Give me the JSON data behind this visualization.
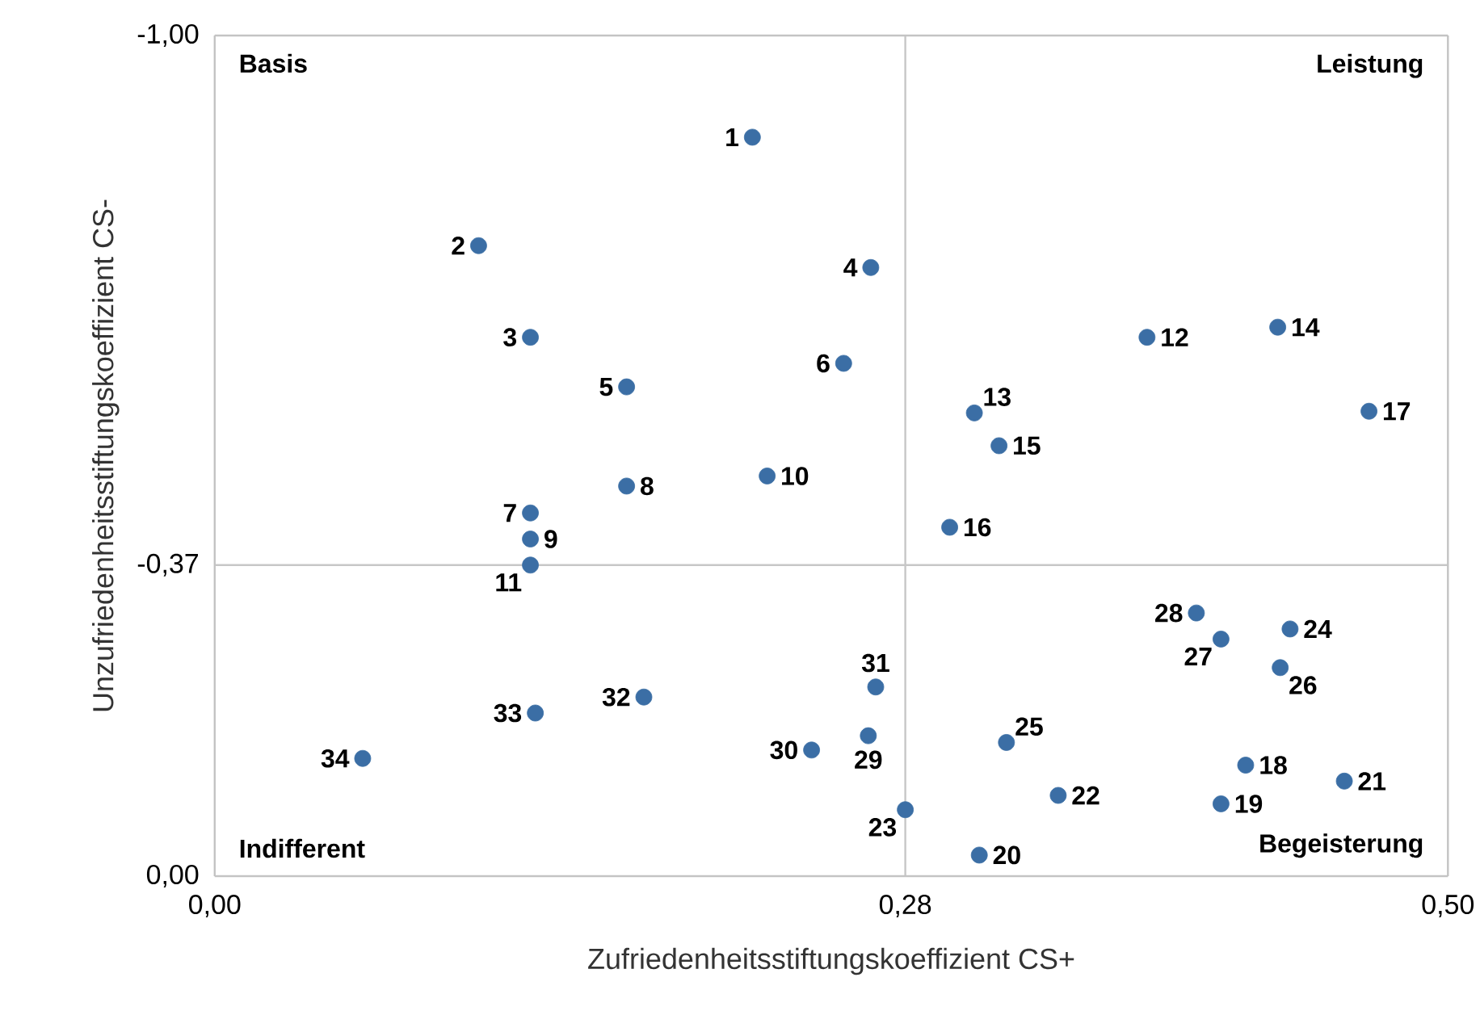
{
  "chart_data": {
    "type": "scatter",
    "xlabel": "Zufriedenheitsstiftungskoeffizient CS+",
    "ylabel": "Unzufriedenheitsstiftungskoeffizient CS-",
    "xlim": [
      0,
      0.5
    ],
    "ylim": [
      0,
      -1
    ],
    "xticks": [
      {
        "value": 0,
        "label": "0,00"
      },
      {
        "value": 0.28,
        "label": "0,28"
      },
      {
        "value": 0.5,
        "label": "0,50"
      }
    ],
    "yticks": [
      {
        "value": -1,
        "label": "-1,00"
      },
      {
        "value": -0.37,
        "label": "-0,37"
      },
      {
        "value": 0,
        "label": "0,00"
      }
    ],
    "grid": true,
    "marker": "circle",
    "series": [
      {
        "color": "#3b6ea5",
        "x": [
          0.218,
          0.107,
          0.128,
          0.266,
          0.167,
          0.255,
          0.128,
          0.167,
          0.128,
          0.224,
          0.128,
          0.378,
          0.308,
          0.431,
          0.318,
          0.298,
          0.468,
          0.418,
          0.408,
          0.31,
          0.458,
          0.342,
          0.28,
          0.436,
          0.321,
          0.432,
          0.408,
          0.398,
          0.265,
          0.242,
          0.268,
          0.174,
          0.13,
          0.06
        ],
        "values": [
          -0.879,
          -0.75,
          -0.641,
          -0.724,
          -0.582,
          -0.61,
          -0.432,
          -0.464,
          -0.401,
          -0.476,
          -0.37,
          -0.641,
          -0.551,
          -0.653,
          -0.512,
          -0.415,
          -0.553,
          -0.132,
          -0.086,
          -0.025,
          -0.113,
          -0.096,
          -0.079,
          -0.294,
          -0.159,
          -0.248,
          -0.282,
          -0.313,
          -0.167,
          -0.15,
          -0.225,
          -0.213,
          -0.194,
          -0.14
        ]
      }
    ],
    "annotations": [
      "Basis",
      "Leistung",
      "Indifferent",
      "Begeisterung",
      {
        "text": "1",
        "x": 0.218,
        "y": -0.879
      },
      {
        "text": "2",
        "x": 0.107,
        "y": -0.75
      },
      {
        "text": "3",
        "x": 0.128,
        "y": -0.641
      },
      {
        "text": "4",
        "x": 0.266,
        "y": -0.724
      },
      {
        "text": "5",
        "x": 0.167,
        "y": -0.582
      },
      {
        "text": "6",
        "x": 0.255,
        "y": -0.61
      },
      {
        "text": "7",
        "x": 0.128,
        "y": -0.432
      },
      {
        "text": "8",
        "x": 0.167,
        "y": -0.464
      },
      {
        "text": "9",
        "x": 0.128,
        "y": -0.401
      },
      {
        "text": "10",
        "x": 0.224,
        "y": -0.476
      },
      {
        "text": "11",
        "x": 0.128,
        "y": -0.37
      },
      {
        "text": "12",
        "x": 0.378,
        "y": -0.641
      },
      {
        "text": "13",
        "x": 0.308,
        "y": -0.551
      },
      {
        "text": "14",
        "x": 0.431,
        "y": -0.653
      },
      {
        "text": "15",
        "x": 0.318,
        "y": -0.512
      },
      {
        "text": "16",
        "x": 0.298,
        "y": -0.415
      },
      {
        "text": "17",
        "x": 0.468,
        "y": -0.553
      },
      {
        "text": "18",
        "x": 0.418,
        "y": -0.132
      },
      {
        "text": "19",
        "x": 0.408,
        "y": -0.086
      },
      {
        "text": "20",
        "x": 0.31,
        "y": -0.025
      },
      {
        "text": "21",
        "x": 0.458,
        "y": -0.113
      },
      {
        "text": "22",
        "x": 0.342,
        "y": -0.096
      },
      {
        "text": "23",
        "x": 0.28,
        "y": -0.079
      },
      {
        "text": "24",
        "x": 0.436,
        "y": -0.294
      },
      {
        "text": "25",
        "x": 0.321,
        "y": -0.159
      },
      {
        "text": "26",
        "x": 0.432,
        "y": -0.248
      },
      {
        "text": "27",
        "x": 0.408,
        "y": -0.282
      },
      {
        "text": "28",
        "x": 0.398,
        "y": -0.313
      },
      {
        "text": "29",
        "x": 0.265,
        "y": -0.167
      },
      {
        "text": "30",
        "x": 0.242,
        "y": -0.15
      },
      {
        "text": "31",
        "x": 0.268,
        "y": -0.225
      },
      {
        "text": "32",
        "x": 0.174,
        "y": -0.213
      },
      {
        "text": "33",
        "x": 0.13,
        "y": -0.194
      },
      {
        "text": "34",
        "x": 0.06,
        "y": -0.14
      }
    ]
  }
}
